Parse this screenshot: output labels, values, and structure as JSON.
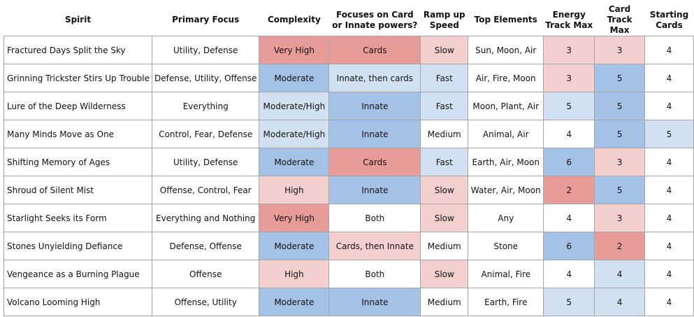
{
  "headers": [
    "Spirit",
    "Primary Focus",
    "Complexity",
    "Focuses on Card or Innate powers?",
    "Ramp up Speed",
    "Top Elements",
    "Energy Track Max",
    "Card Track Max",
    "Starting Cards"
  ],
  "colors": {
    "white": "#ffffff",
    "red": "#e79c9a",
    "light_red": "#f3cfce",
    "blue": "#a4c2e6",
    "light_blue": "#d1e1f2",
    "border": "#a6a6a6"
  },
  "rows": [
    {
      "cells": [
        "Fractured Days Split the Sky",
        "Utility, Defense",
        "Very High",
        "Cards",
        "Slow",
        "Sun, Moon, Air",
        "3",
        "3",
        "4"
      ],
      "colors": [
        "white",
        "white",
        "red",
        "red",
        "lred",
        "white",
        "lred",
        "lred",
        "white"
      ]
    },
    {
      "cells": [
        "Grinning Trickster Stirs Up Trouble",
        "Defense, Utility, Offense",
        "Moderate",
        "Innate, then cards",
        "Fast",
        "Air, Fire, Moon",
        "3",
        "5",
        "4"
      ],
      "colors": [
        "white",
        "white",
        "blue",
        "lblue",
        "lblue",
        "white",
        "lred",
        "blue",
        "white"
      ]
    },
    {
      "cells": [
        "Lure of the Deep Wilderness",
        "Everything",
        "Moderate/High",
        "Innate",
        "Fast",
        "Moon, Plant, Air",
        "5",
        "5",
        "4"
      ],
      "colors": [
        "white",
        "white",
        "lblue",
        "blue",
        "lblue",
        "white",
        "lblue",
        "blue",
        "white"
      ]
    },
    {
      "cells": [
        "Many Minds Move as One",
        "Control, Fear, Defense",
        "Moderate/High",
        "Innate",
        "Medium",
        "Animal, Air",
        "4",
        "5",
        "5"
      ],
      "colors": [
        "white",
        "white",
        "lblue",
        "blue",
        "white",
        "white",
        "white",
        "blue",
        "lblue"
      ]
    },
    {
      "cells": [
        "Shifting Memory of Ages",
        "Utility, Defense",
        "Moderate",
        "Cards",
        "Fast",
        "Earth, Air, Moon",
        "6",
        "3",
        "4"
      ],
      "colors": [
        "white",
        "white",
        "blue",
        "red",
        "lblue",
        "white",
        "blue",
        "lred",
        "white"
      ]
    },
    {
      "cells": [
        "Shroud of Silent Mist",
        "Offense, Control, Fear",
        "High",
        "Innate",
        "Slow",
        "Water, Air, Moon",
        "2",
        "5",
        "4"
      ],
      "colors": [
        "white",
        "white",
        "lred",
        "blue",
        "lred",
        "white",
        "red",
        "blue",
        "white"
      ]
    },
    {
      "cells": [
        "Starlight Seeks its Form",
        "Everything and Nothing",
        "Very High",
        "Both",
        "Slow",
        "Any",
        "4",
        "3",
        "4"
      ],
      "colors": [
        "white",
        "white",
        "red",
        "white",
        "lred",
        "white",
        "white",
        "lred",
        "white"
      ]
    },
    {
      "cells": [
        "Stones Unyielding Defiance",
        "Defense, Offense",
        "Moderate",
        "Cards, then Innate",
        "Medium",
        "Stone",
        "6",
        "2",
        "4"
      ],
      "colors": [
        "white",
        "white",
        "blue",
        "lred",
        "white",
        "white",
        "blue",
        "red",
        "white"
      ]
    },
    {
      "cells": [
        "Vengeance as a Burning Plague",
        "Offense",
        "High",
        "Both",
        "Slow",
        "Animal, Fire",
        "4",
        "4",
        "4"
      ],
      "colors": [
        "white",
        "white",
        "lred",
        "white",
        "lred",
        "white",
        "white",
        "lblue",
        "white"
      ]
    },
    {
      "cells": [
        "Volcano Looming High",
        "Offense, Utility",
        "Moderate",
        "Innate",
        "Medium",
        "Earth, Fire",
        "5",
        "4",
        "4"
      ],
      "colors": [
        "white",
        "white",
        "blue",
        "blue",
        "white",
        "white",
        "lblue",
        "lblue",
        "white"
      ]
    }
  ]
}
